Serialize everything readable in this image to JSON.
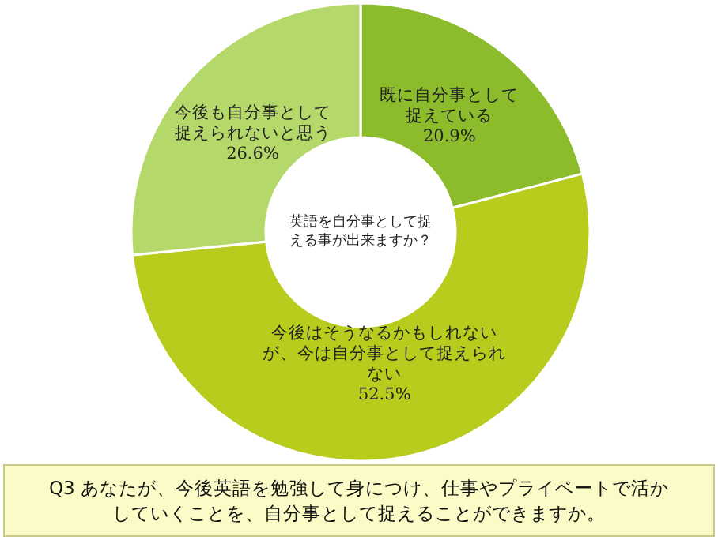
{
  "chart_data": {
    "type": "donut",
    "categories": [
      "既に自分事として捉えている",
      "今後はそうなるかもしれないが、今は自分事として捉えられない",
      "今後も自分事として捉えられないと思う"
    ],
    "values": [
      20.9,
      52.5,
      26.6
    ],
    "value_labels": [
      "20.9%",
      "52.5%",
      "26.6%"
    ],
    "colors": [
      "#8cbc2c",
      "#b7cc1c",
      "#b4d869"
    ],
    "annotations": [
      "英語を自分事として捉える事が出来ますか？",
      "Q3 あなたが、今後英語を勉強して身につけ、仕事やプライベートで活かしていくことを、自分事として捉えることができますか。"
    ]
  }
}
